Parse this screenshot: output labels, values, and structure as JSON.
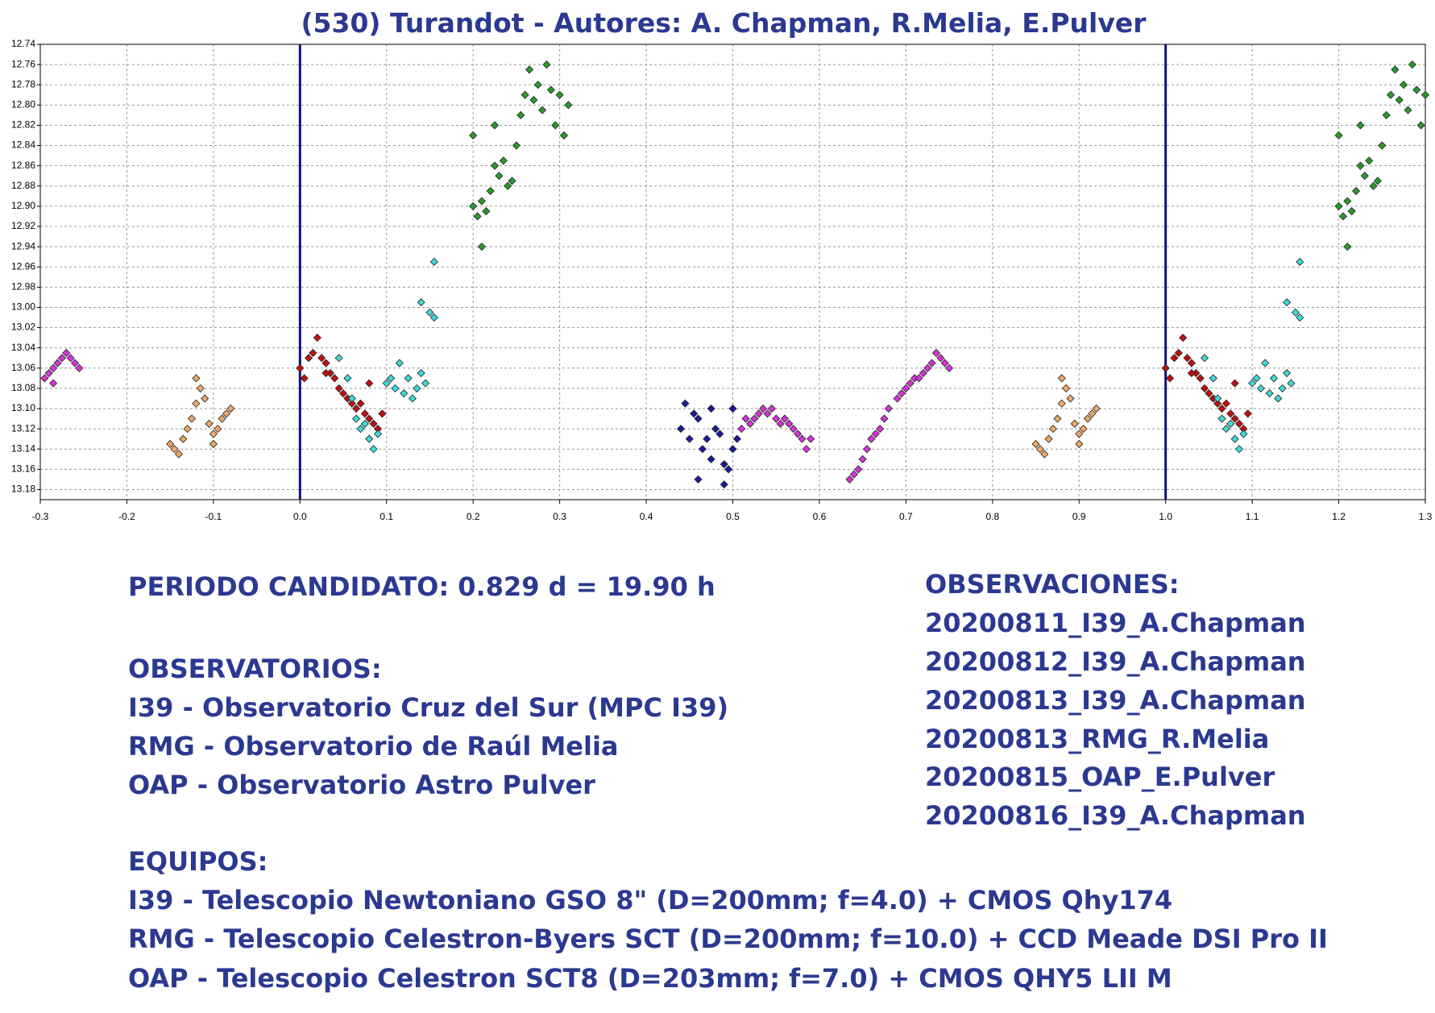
{
  "chart_data": {
    "type": "scatter",
    "title": "(530) Turandot - Autores: A. Chapman, R.Melia, E.Pulver",
    "xlim": [
      -0.3,
      1.3
    ],
    "ylim": [
      12.74,
      13.19
    ],
    "y_inverted": true,
    "grid": true,
    "vertical_lines": [
      0,
      1
    ],
    "vertical_line_color": "#101080",
    "xticks": [
      -0.3,
      -0.2,
      -0.1,
      {
        "value": 0,
        "label": "0.0"
      },
      0.1,
      0.2,
      0.3,
      0.4,
      0.5,
      0.6,
      0.7,
      0.8,
      0.9,
      {
        "value": 1,
        "label": "1.0"
      },
      1.1,
      1.2,
      1.3
    ],
    "yticks": [
      12.74,
      12.76,
      12.78,
      {
        "value": 12.8,
        "label": "12.80"
      },
      12.82,
      12.84,
      12.86,
      12.88,
      {
        "value": 12.9,
        "label": "12.90"
      },
      12.92,
      12.94,
      12.96,
      12.98,
      {
        "value": 13,
        "label": "13.00"
      },
      13.02,
      13.04,
      13.06,
      13.08,
      {
        "value": 13.1,
        "label": "13.10"
      },
      13.12,
      13.14,
      13.16,
      13.18
    ],
    "series": [
      {
        "color": "#d633d6",
        "x": [
          -0.295,
          -0.29,
          -0.285,
          -0.28,
          -0.275,
          -0.27,
          -0.265,
          -0.26,
          -0.255,
          -0.285,
          0.51,
          0.515,
          0.52,
          0.525,
          0.53,
          0.535,
          0.54,
          0.545,
          0.55,
          0.555,
          0.56,
          0.565,
          0.57,
          0.575,
          0.58,
          0.585,
          0.59,
          0.635,
          0.64,
          0.645,
          0.65,
          0.655,
          0.66,
          0.665,
          0.67,
          0.675,
          0.68,
          0.69,
          0.695,
          0.7,
          0.705,
          0.71,
          0.715,
          0.72,
          0.725,
          0.73,
          0.735,
          0.74,
          0.745,
          0.75
        ],
        "values": [
          13.07,
          13.065,
          13.06,
          13.055,
          13.05,
          13.045,
          13.05,
          13.055,
          13.06,
          13.075,
          13.12,
          13.11,
          13.115,
          13.11,
          13.105,
          13.1,
          13.105,
          13.1,
          13.11,
          13.115,
          13.11,
          13.115,
          13.12,
          13.125,
          13.13,
          13.14,
          13.13,
          13.17,
          13.165,
          13.16,
          13.15,
          13.14,
          13.13,
          13.125,
          13.12,
          13.11,
          13.1,
          13.09,
          13.085,
          13.08,
          13.075,
          13.07,
          13.07,
          13.065,
          13.06,
          13.055,
          13.045,
          13.05,
          13.055,
          13.06
        ]
      },
      {
        "color": "#f0a868",
        "x": [
          -0.15,
          -0.145,
          -0.14,
          -0.135,
          -0.13,
          -0.125,
          -0.12,
          -0.115,
          -0.12,
          -0.11,
          -0.105,
          -0.1,
          -0.095,
          -0.09,
          -0.085,
          -0.08,
          -0.1,
          0.85,
          0.855,
          0.86,
          0.865,
          0.87,
          0.875,
          0.88,
          0.885,
          0.88,
          0.89,
          0.895,
          0.9,
          0.905,
          0.91,
          0.915,
          0.92,
          0.9
        ],
        "values": [
          13.135,
          13.14,
          13.145,
          13.13,
          13.12,
          13.11,
          13.095,
          13.08,
          13.07,
          13.09,
          13.115,
          13.125,
          13.12,
          13.11,
          13.105,
          13.1,
          13.135,
          13.135,
          13.14,
          13.145,
          13.13,
          13.12,
          13.11,
          13.095,
          13.08,
          13.07,
          13.09,
          13.115,
          13.125,
          13.12,
          13.11,
          13.105,
          13.1,
          13.135
        ]
      },
      {
        "color": "#c01010",
        "x": [
          0,
          0.005,
          0.01,
          0.015,
          0.02,
          0.025,
          0.03,
          0.035,
          0.04,
          0.045,
          0.05,
          0.055,
          0.06,
          0.065,
          0.07,
          0.075,
          0.08,
          0.085,
          0.09,
          0.095,
          0.08,
          0.03,
          1,
          1.005,
          1.01,
          1.015,
          1.02,
          1.025,
          1.03,
          1.035,
          1.04,
          1.045,
          1.05,
          1.055,
          1.06,
          1.065,
          1.07,
          1.075,
          1.08,
          1.085,
          1.09,
          1.095,
          1.08,
          1.03
        ],
        "values": [
          13.06,
          13.07,
          13.05,
          13.045,
          13.03,
          13.05,
          13.055,
          13.065,
          13.07,
          13.08,
          13.085,
          13.09,
          13.095,
          13.1,
          13.095,
          13.105,
          13.11,
          13.115,
          13.12,
          13.105,
          13.075,
          13.065,
          13.06,
          13.07,
          13.05,
          13.045,
          13.03,
          13.05,
          13.055,
          13.065,
          13.07,
          13.08,
          13.085,
          13.09,
          13.095,
          13.1,
          13.095,
          13.105,
          13.11,
          13.115,
          13.12,
          13.105,
          13.075,
          13.065
        ]
      },
      {
        "color": "#40d8d8",
        "x": [
          0.045,
          0.055,
          0.06,
          0.065,
          0.07,
          0.075,
          0.08,
          0.085,
          0.09,
          0.1,
          0.105,
          0.11,
          0.115,
          0.12,
          0.125,
          0.13,
          0.135,
          0.14,
          0.145,
          0.14,
          0.15,
          0.155,
          0.155,
          1.045,
          1.055,
          1.06,
          1.065,
          1.07,
          1.075,
          1.08,
          1.085,
          1.09,
          1.1,
          1.105,
          1.11,
          1.115,
          1.12,
          1.125,
          1.13,
          1.135,
          1.14,
          1.145,
          1.14,
          1.15,
          1.155,
          1.155
        ],
        "values": [
          13.05,
          13.07,
          13.09,
          13.11,
          13.12,
          13.115,
          13.13,
          13.14,
          13.125,
          13.075,
          13.07,
          13.08,
          13.055,
          13.085,
          13.07,
          13.09,
          13.08,
          13.065,
          13.075,
          12.995,
          13.005,
          13.01,
          12.955,
          13.05,
          13.07,
          13.09,
          13.11,
          13.12,
          13.115,
          13.13,
          13.14,
          13.125,
          13.075,
          13.07,
          13.08,
          13.055,
          13.085,
          13.07,
          13.09,
          13.08,
          13.065,
          13.075,
          12.995,
          13.005,
          13.01,
          12.955
        ]
      },
      {
        "color": "#2a9a2a",
        "x": [
          0.2,
          0.2,
          0.205,
          0.21,
          0.21,
          0.215,
          0.22,
          0.225,
          0.225,
          0.23,
          0.235,
          0.24,
          0.245,
          0.25,
          0.255,
          0.26,
          0.265,
          0.27,
          0.275,
          0.28,
          0.285,
          0.29,
          0.295,
          0.3,
          0.305,
          0.31,
          1.2,
          1.2,
          1.205,
          1.21,
          1.21,
          1.215,
          1.22,
          1.225,
          1.225,
          1.23,
          1.235,
          1.24,
          1.245,
          1.25,
          1.255,
          1.26,
          1.265,
          1.27,
          1.275,
          1.28,
          1.285,
          1.29,
          1.295,
          1.3
        ],
        "values": [
          12.83,
          12.9,
          12.91,
          12.94,
          12.895,
          12.905,
          12.885,
          12.86,
          12.82,
          12.87,
          12.855,
          12.88,
          12.875,
          12.84,
          12.81,
          12.79,
          12.765,
          12.795,
          12.78,
          12.805,
          12.76,
          12.785,
          12.82,
          12.79,
          12.83,
          12.8,
          12.83,
          12.9,
          12.91,
          12.94,
          12.895,
          12.905,
          12.885,
          12.86,
          12.82,
          12.87,
          12.855,
          12.88,
          12.875,
          12.84,
          12.81,
          12.79,
          12.765,
          12.795,
          12.78,
          12.805,
          12.76,
          12.785,
          12.82,
          12.79
        ]
      },
      {
        "color": "#1a1a9a",
        "x": [
          0.44,
          0.445,
          0.45,
          0.455,
          0.46,
          0.465,
          0.47,
          0.475,
          0.46,
          0.48,
          0.485,
          0.49,
          0.495,
          0.49,
          0.5,
          0.505,
          0.475,
          0.5
        ],
        "values": [
          13.12,
          13.095,
          13.13,
          13.105,
          13.11,
          13.14,
          13.13,
          13.15,
          13.17,
          13.12,
          13.125,
          13.155,
          13.16,
          13.175,
          13.14,
          13.13,
          13.1,
          13.1
        ]
      }
    ]
  },
  "notes": {
    "period": "PERIODO CANDIDATO: 0.829 d = 19.90 h",
    "observatories_title": "OBSERVATORIOS:",
    "observatories": [
      "I39 - Observatorio Cruz del Sur (MPC I39)",
      "RMG - Observatorio de Raúl Melia",
      "OAP - Observatorio Astro Pulver"
    ],
    "equipment_title": "EQUIPOS:",
    "equipment": [
      "I39 - Telescopio Newtoniano GSO 8\" (D=200mm; f=4.0) + CMOS Qhy174",
      "RMG - Telescopio Celestron-Byers SCT (D=200mm; f=10.0) + CCD Meade DSI Pro II",
      "OAP - Telescopio Celestron SCT8 (D=203mm; f=7.0) + CMOS QHY5 LII M"
    ],
    "observations_title": "OBSERVACIONES:",
    "observations": [
      "20200811_I39_A.Chapman",
      "20200812_I39_A.Chapman",
      "20200813_I39_A.Chapman",
      "20200813_RMG_R.Melia",
      "20200815_OAP_E.Pulver",
      "20200816_I39_A.Chapman"
    ]
  }
}
